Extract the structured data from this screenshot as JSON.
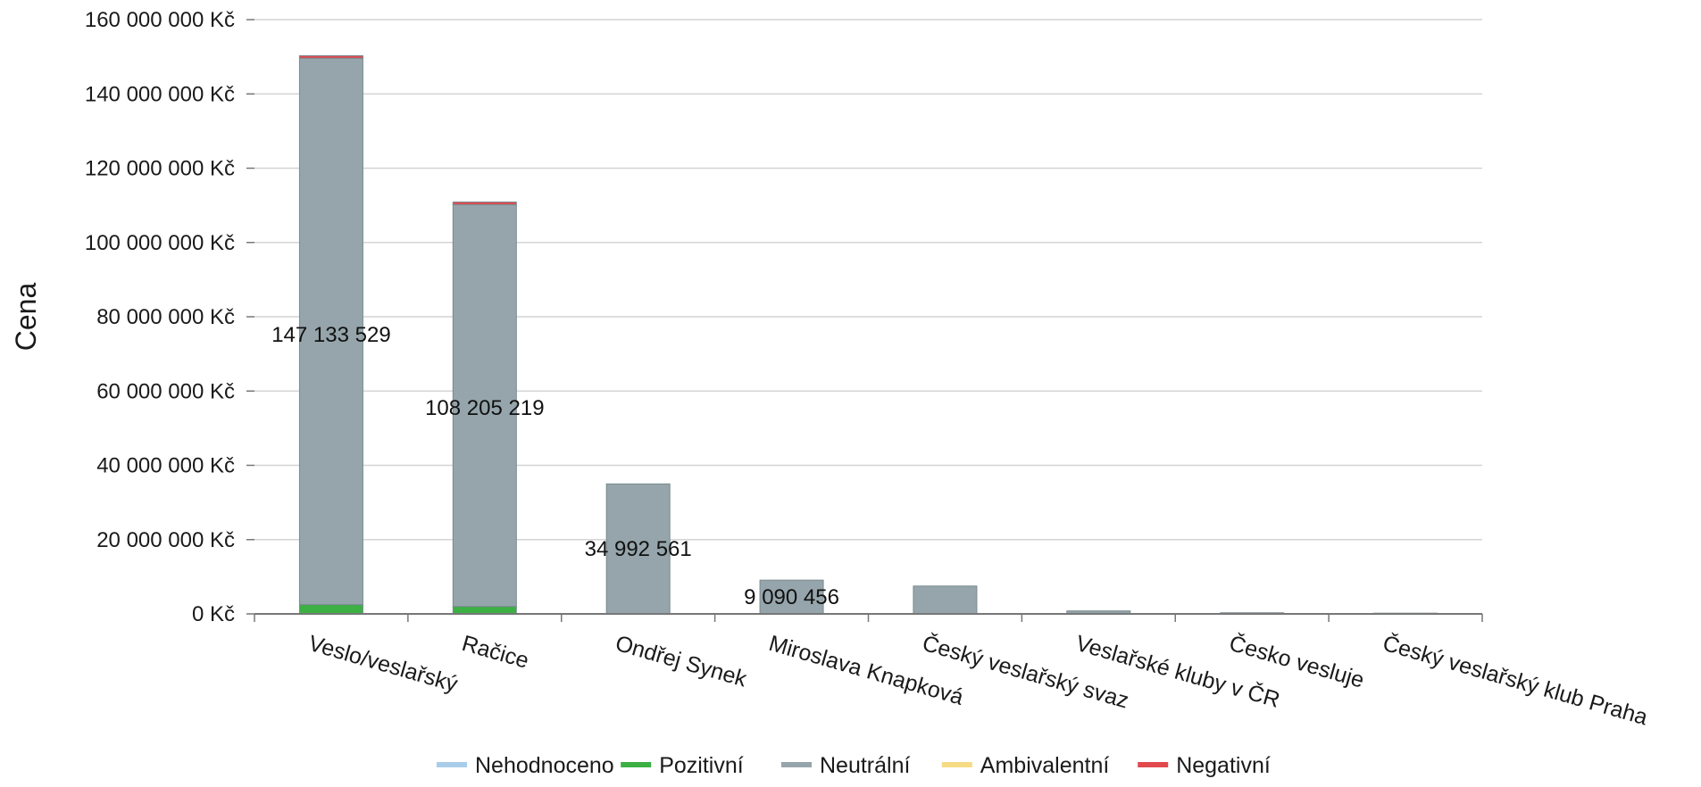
{
  "chart_data": {
    "type": "bar",
    "stacked": true,
    "title": "",
    "xlabel": "",
    "ylabel": "Cena",
    "ylim": [
      0,
      160000000
    ],
    "y_ticks": [
      0,
      20000000,
      40000000,
      60000000,
      80000000,
      100000000,
      120000000,
      140000000,
      160000000
    ],
    "y_tick_labels": [
      "0 Kč",
      "20 000 000 Kč",
      "40 000 000 Kč",
      "60 000 000 Kč",
      "80 000 000 Kč",
      "100 000 000 Kč",
      "120 000 000 Kč",
      "140 000 000 Kč",
      "160 000 000 Kč"
    ],
    "grid": true,
    "legend_position": "bottom",
    "categories": [
      "Veslo/veslařský",
      "Račice",
      "Ondřej Synek",
      "Miroslava Knapková",
      "Český veslařský svaz",
      "Veslařské kluby v ČR",
      "Česko vesluje",
      "Český veslařský klub Praha"
    ],
    "series": [
      {
        "name": "Nehodnoceno",
        "color": "#a9cde9",
        "values": [
          0,
          0,
          0,
          0,
          0,
          0,
          0,
          0
        ]
      },
      {
        "name": "Pozitivní",
        "color": "#3cb043",
        "values": [
          2500000,
          2000000,
          0,
          0,
          0,
          0,
          0,
          0
        ]
      },
      {
        "name": "Neutrální",
        "color": "#95a5ab",
        "values": [
          147100000,
          108200000,
          35000000,
          9090456,
          7500000,
          800000,
          300000,
          200000
        ]
      },
      {
        "name": "Ambivalentní",
        "color": "#f5dc84",
        "values": [
          0,
          0,
          0,
          0,
          0,
          0,
          0,
          0
        ]
      },
      {
        "name": "Negativní",
        "color": "#e2494f",
        "values": [
          700000,
          700000,
          0,
          0,
          0,
          0,
          0,
          0
        ]
      }
    ],
    "data_labels": [
      "147 133 529",
      "108 205 219",
      "34 992 561",
      "9 090 456",
      "",
      "",
      "",
      ""
    ]
  }
}
